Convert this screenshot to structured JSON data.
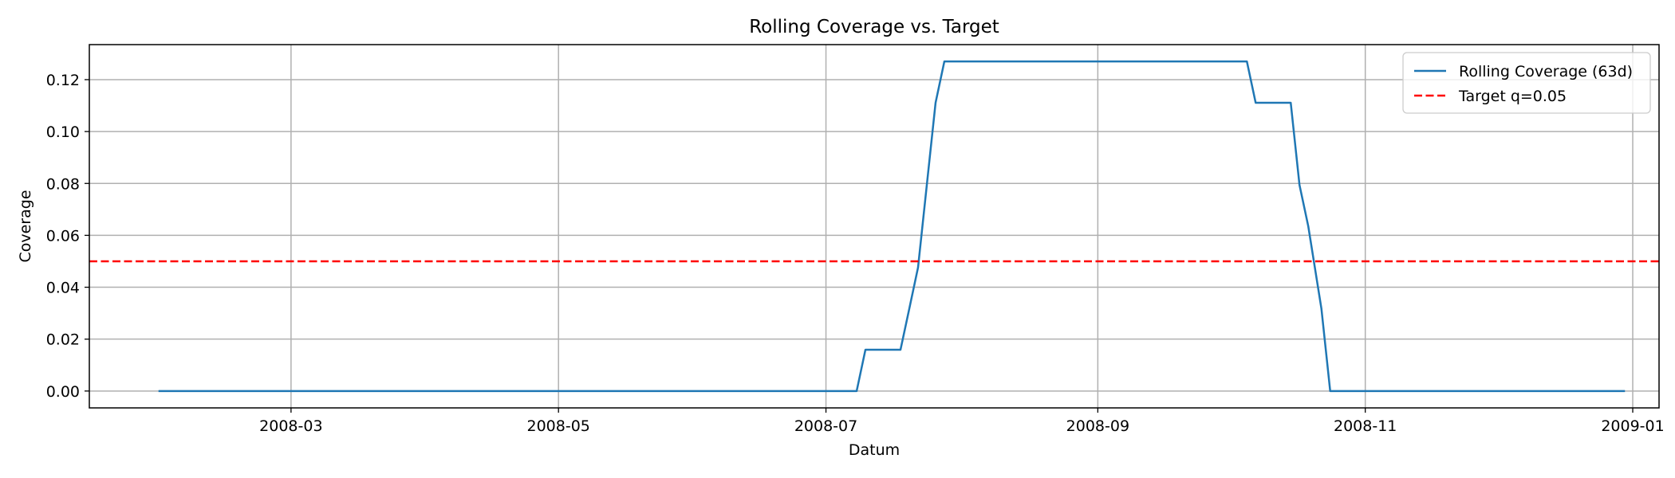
{
  "chart_data": {
    "type": "line",
    "title": "Rolling Coverage vs. Target",
    "xlabel": "Datum",
    "ylabel": "Coverage",
    "xlim": [
      "2008-01-15",
      "2009-01-07"
    ],
    "ylim": [
      -0.0065,
      0.1335
    ],
    "x_ticks": [
      "2008-03-01",
      "2008-05-01",
      "2008-07-01",
      "2008-09-01",
      "2008-11-01",
      "2009-01-01"
    ],
    "x_tick_labels": [
      "2008-03",
      "2008-05",
      "2008-07",
      "2008-09",
      "2008-11",
      "2009-01"
    ],
    "y_ticks": [
      0.0,
      0.02,
      0.04,
      0.06,
      0.08,
      0.1,
      0.12
    ],
    "y_tick_labels": [
      "0.00",
      "0.02",
      "0.04",
      "0.06",
      "0.08",
      "0.10",
      "0.12"
    ],
    "grid": true,
    "legend_position": "top-right",
    "series": [
      {
        "name": "Rolling Coverage (63d)",
        "color": "#1f77b4",
        "style": "solid",
        "x": [
          "2008-01-31",
          "2008-07-08",
          "2008-07-10",
          "2008-07-18",
          "2008-07-20",
          "2008-07-22",
          "2008-07-24",
          "2008-07-26",
          "2008-07-28",
          "2008-07-30",
          "2008-07-31",
          "2008-10-05",
          "2008-10-07",
          "2008-10-15",
          "2008-10-17",
          "2008-10-19",
          "2008-10-22",
          "2008-10-24",
          "2008-12-30"
        ],
        "y": [
          0.0,
          0.0,
          0.0159,
          0.0159,
          0.0317,
          0.0476,
          0.0794,
          0.1111,
          0.127,
          0.127,
          0.127,
          0.127,
          0.1111,
          0.1111,
          0.0794,
          0.0635,
          0.0317,
          0.0,
          0.0
        ]
      },
      {
        "name": "Target q=0.05",
        "color": "#ff0000",
        "style": "dashed",
        "y_const": 0.05
      }
    ]
  }
}
